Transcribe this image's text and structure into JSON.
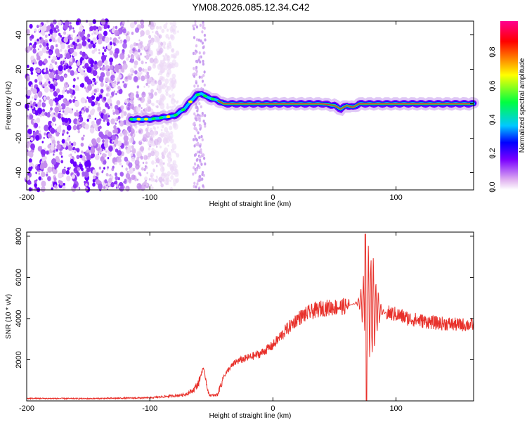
{
  "title": "YM08.2026.085.12.34.C42",
  "colors": {
    "snr_line": "#e8302a",
    "ridge_core": "#e8303a",
    "colormap": [
      "#ffffff",
      "#e0b0f0",
      "#7a00ff",
      "#0000ff",
      "#00c8ff",
      "#00ff40",
      "#ffff00",
      "#ff8000",
      "#ff0000",
      "#ff0090"
    ]
  },
  "chart_data": [
    {
      "type": "heatmap",
      "name": "spectrogram",
      "xlabel": "Height of straight line (km)",
      "ylabel": "Frequency (Hz)",
      "xlim": [
        -200,
        163
      ],
      "ylim": [
        -50,
        48
      ],
      "xticks": [
        -200,
        -100,
        0,
        100
      ],
      "yticks": [
        -40,
        -20,
        0,
        20,
        40
      ],
      "colorbar": {
        "label": "Normalized spectral amplitude",
        "range": [
          0,
          1
        ],
        "ticks": [
          "0.0",
          "0.2",
          "0.4",
          "0.6",
          "0.8"
        ]
      },
      "noise_region_x": [
        -200,
        -85
      ],
      "noise_strip_x": [
        -65,
        -55
      ],
      "ridge": {
        "x": [
          -115,
          -100,
          -90,
          -80,
          -72,
          -66,
          -62,
          -58,
          -54,
          -50,
          -45,
          -40,
          -20,
          0,
          20,
          40,
          50,
          55,
          60,
          65,
          70,
          75,
          100,
          163
        ],
        "y": [
          -9,
          -9,
          -8,
          -7,
          -3,
          2,
          5,
          6,
          4,
          3,
          2,
          0,
          0,
          0,
          0,
          0,
          -1,
          -3,
          -1,
          -2,
          0,
          0,
          0,
          0
        ],
        "strong_from_x": -45
      }
    },
    {
      "type": "line",
      "name": "snr",
      "xlabel": "Height of straight line (km)",
      "ylabel": "SNR (10 * v/v)",
      "xlim": [
        -200,
        163
      ],
      "ylim": [
        0,
        8200
      ],
      "xticks": [
        -200,
        -100,
        0,
        100
      ],
      "yticks": [
        2000,
        4000,
        6000,
        8000
      ],
      "envelope": {
        "x": [
          -200,
          -150,
          -100,
          -90,
          -80,
          -72,
          -65,
          -60,
          -57,
          -55,
          -52,
          -48,
          -45,
          -40,
          -35,
          -30,
          -20,
          -10,
          0,
          10,
          20,
          30,
          40,
          50,
          60,
          65,
          70,
          75,
          80,
          85,
          90,
          100,
          110,
          120,
          130,
          140,
          150,
          163
        ],
        "y": [
          120,
          110,
          150,
          200,
          250,
          300,
          500,
          900,
          1600,
          1200,
          300,
          250,
          300,
          1200,
          1600,
          1900,
          2100,
          2300,
          2700,
          3400,
          4000,
          4300,
          4500,
          4550,
          4600,
          4700,
          4800,
          4700,
          4600,
          4400,
          4300,
          4200,
          4000,
          3900,
          3800,
          3750,
          3700,
          3700
        ]
      },
      "oscillation_x": [
        62,
        92
      ],
      "peak": {
        "x": 75,
        "y": 8100
      },
      "dropout": {
        "x": 76,
        "y": 0
      }
    }
  ]
}
